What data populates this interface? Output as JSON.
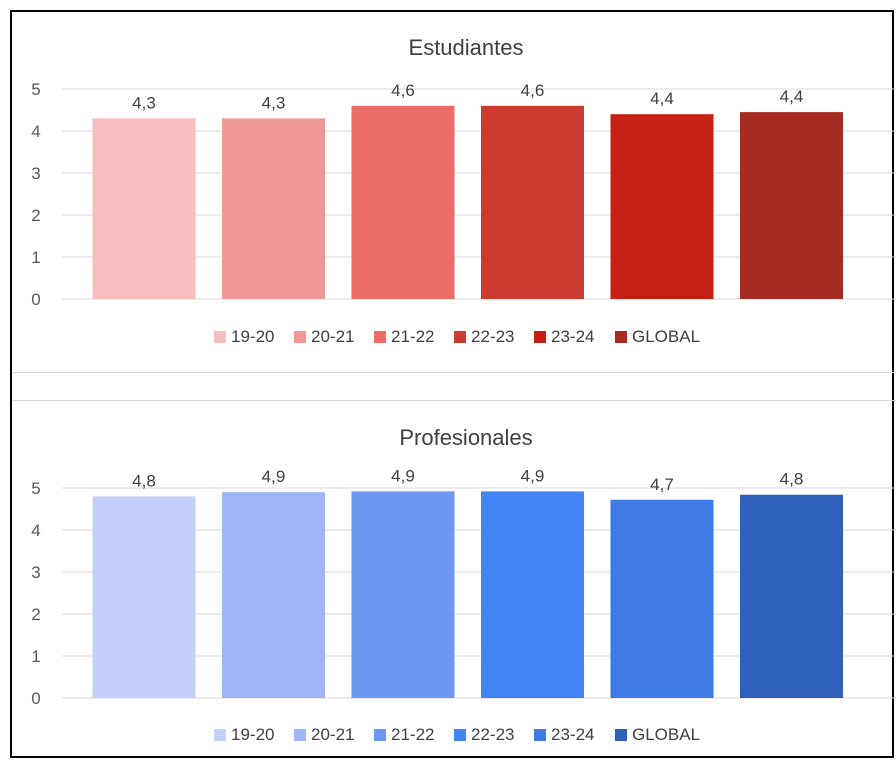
{
  "chart_data": [
    {
      "type": "bar",
      "title": "Estudiantes",
      "categories": [
        "19-20",
        "20-21",
        "21-22",
        "22-23",
        "23-24",
        "GLOBAL"
      ],
      "values": [
        4.3,
        4.3,
        4.6,
        4.6,
        4.4,
        4.45
      ],
      "data_labels": [
        "4,3",
        "4,3",
        "4,6",
        "4,6",
        "4,4",
        "4,4"
      ],
      "colors": [
        "#f7bebd",
        "#f09896",
        "#ec6d67",
        "#cc3a30",
        "#c42014",
        "#a62b22"
      ],
      "ylim": [
        0,
        5
      ],
      "yticks": [
        0,
        1,
        2,
        3,
        4,
        5
      ],
      "xlabel": "",
      "ylabel": "",
      "grid": true,
      "legend": "bottom"
    },
    {
      "type": "bar",
      "title": "Profesionales",
      "categories": [
        "19-20",
        "20-21",
        "21-22",
        "22-23",
        "23-24",
        "GLOBAL"
      ],
      "values": [
        4.8,
        4.9,
        4.92,
        4.92,
        4.72,
        4.84
      ],
      "data_labels": [
        "4,8",
        "4,9",
        "4,9",
        "4,9",
        "4,7",
        "4,8"
      ],
      "colors": [
        "#c2d0fa",
        "#9fb6f6",
        "#6c98f2",
        "#4384f5",
        "#3e7be6",
        "#2e60b9"
      ],
      "ylim": [
        0,
        5
      ],
      "yticks": [
        0,
        1,
        2,
        3,
        4,
        5
      ],
      "xlabel": "",
      "ylabel": "",
      "grid": true,
      "legend": "bottom"
    }
  ]
}
